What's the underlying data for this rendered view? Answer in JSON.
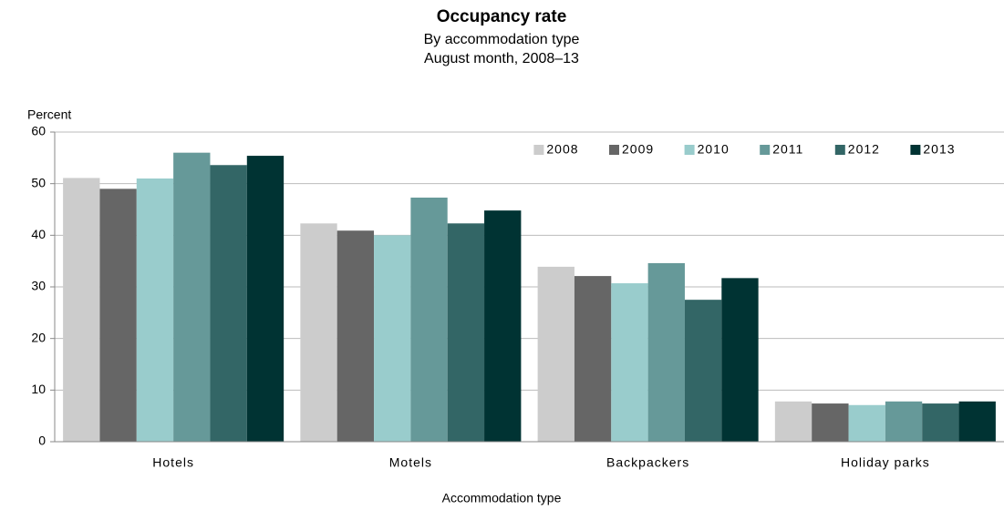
{
  "chart_data": {
    "type": "bar",
    "title": "Occupancy rate",
    "subtitle": [
      "By accommodation  type",
      "August month, 2008–13"
    ],
    "ylabel": "Percent",
    "xlabel": "Accommodation type",
    "categories": [
      "Hotels",
      "Motels",
      "Backpackers",
      "Holiday parks"
    ],
    "series": [
      {
        "name": "2008",
        "color": "#cccccc",
        "values": [
          51.1,
          42.3,
          33.9,
          7.8
        ]
      },
      {
        "name": "2009",
        "color": "#666666",
        "values": [
          49,
          40.9,
          32.1,
          7.4
        ]
      },
      {
        "name": "2010",
        "color": "#99cccc",
        "values": [
          51,
          40,
          30.7,
          7.1
        ]
      },
      {
        "name": "2011",
        "color": "#669999",
        "values": [
          56,
          47.3,
          34.6,
          7.8
        ]
      },
      {
        "name": "2012",
        "color": "#336666",
        "values": [
          53.6,
          42.3,
          27.5,
          7.4
        ]
      },
      {
        "name": "2013",
        "color": "#003333",
        "values": [
          55.4,
          44.8,
          31.7,
          7.8
        ]
      }
    ],
    "ylim": [
      0,
      60
    ],
    "yticks": [
      0,
      10,
      20,
      30,
      40,
      50,
      60
    ],
    "grid": true,
    "legend": "upper right"
  }
}
